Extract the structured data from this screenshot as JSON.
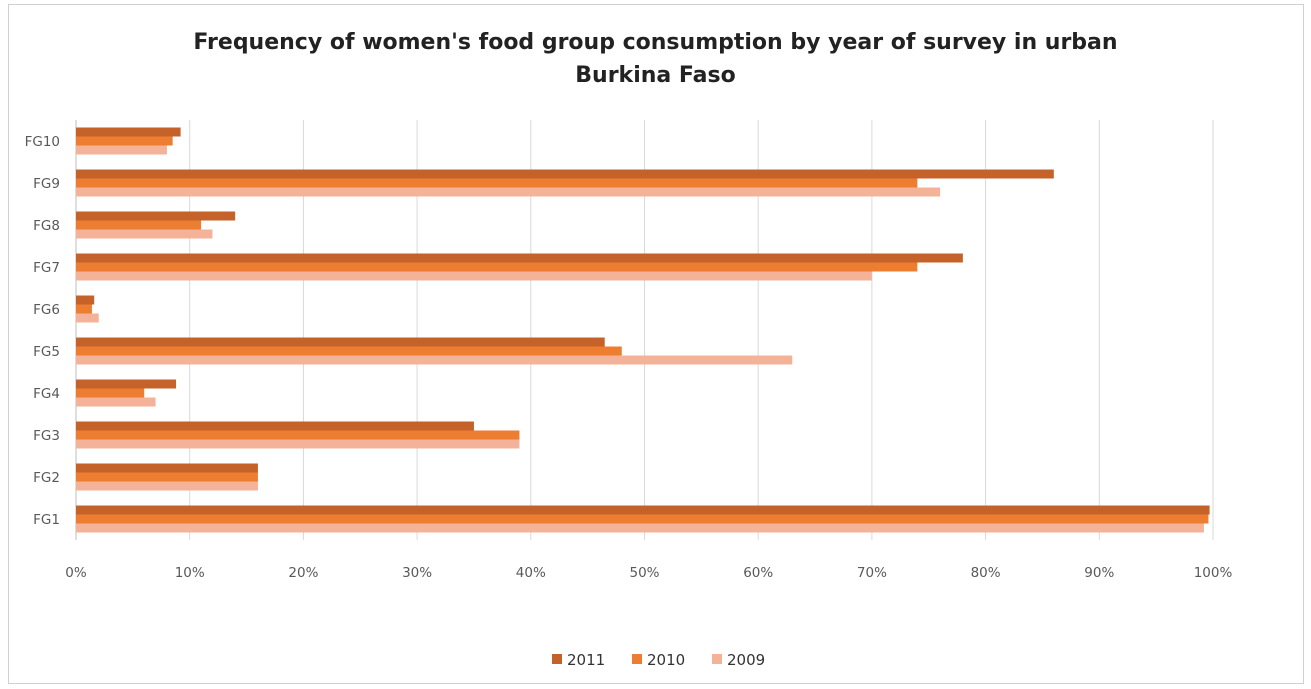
{
  "chart_data": {
    "type": "bar",
    "orientation": "horizontal",
    "title": [
      "Frequency of women's  food group consumption by year of survey in urban",
      "Burkina Faso"
    ],
    "categories": [
      "FG1",
      "FG2",
      "FG3",
      "FG4",
      "FG5",
      "FG6",
      "FG7",
      "FG8",
      "FG9",
      "FG10"
    ],
    "series": [
      {
        "name": "2011",
        "color": "#c5622a",
        "values": [
          99.7,
          16,
          35,
          8.8,
          46.5,
          1.6,
          78,
          14,
          86,
          9.2
        ]
      },
      {
        "name": "2010",
        "color": "#ed7d31",
        "values": [
          99.6,
          16,
          39,
          6,
          48,
          1.4,
          74,
          11,
          74,
          8.5
        ]
      },
      {
        "name": "2009",
        "color": "#f4b399",
        "values": [
          99.2,
          16,
          39,
          7,
          63,
          2,
          70,
          12,
          76,
          8
        ]
      }
    ],
    "xlim": [
      0,
      100
    ],
    "xticks": [
      "0%",
      "10%",
      "20%",
      "30%",
      "40%",
      "50%",
      "60%",
      "70%",
      "80%",
      "90%",
      "100%"
    ],
    "grid": true,
    "legend": "bottom"
  }
}
